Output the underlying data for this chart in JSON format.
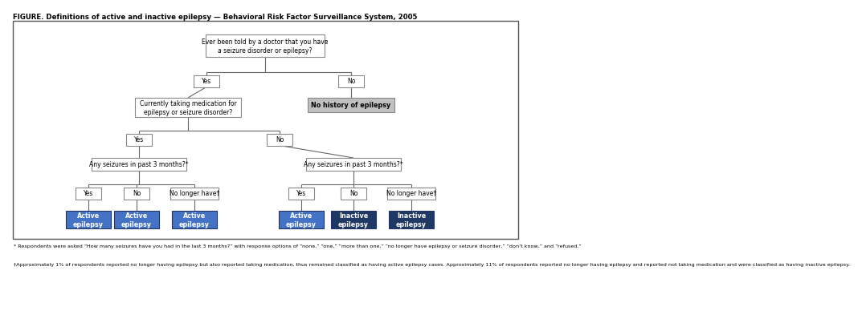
{
  "title": "FIGURE. Definitions of active and inactive epilepsy — Behavioral Risk Factor Surveillance System, 2005",
  "footnote1": "* Respondents were asked “How many seizures have you had in the last 3 months?” with response options of “none,” “one,” “more than one,” “no longer have epilepsy or seizure disorder,” “don’t know,” and “refused.”",
  "footnote2": "†Approximately 1% of respondents reported no longer having epilepsy but also reported taking medication, thus remained classified as having active epilepsy cases. Approximately 11% of respondents reported no longer having epilepsy and reported not taking medication and were classified as having inactive epilepsy.",
  "box_fill_active": "#4472c4",
  "box_fill_inactive": "#1f3864",
  "box_fill_gray": "#c0c0c0",
  "text_color_white": "#ffffff",
  "fig_bg": "#ffffff"
}
